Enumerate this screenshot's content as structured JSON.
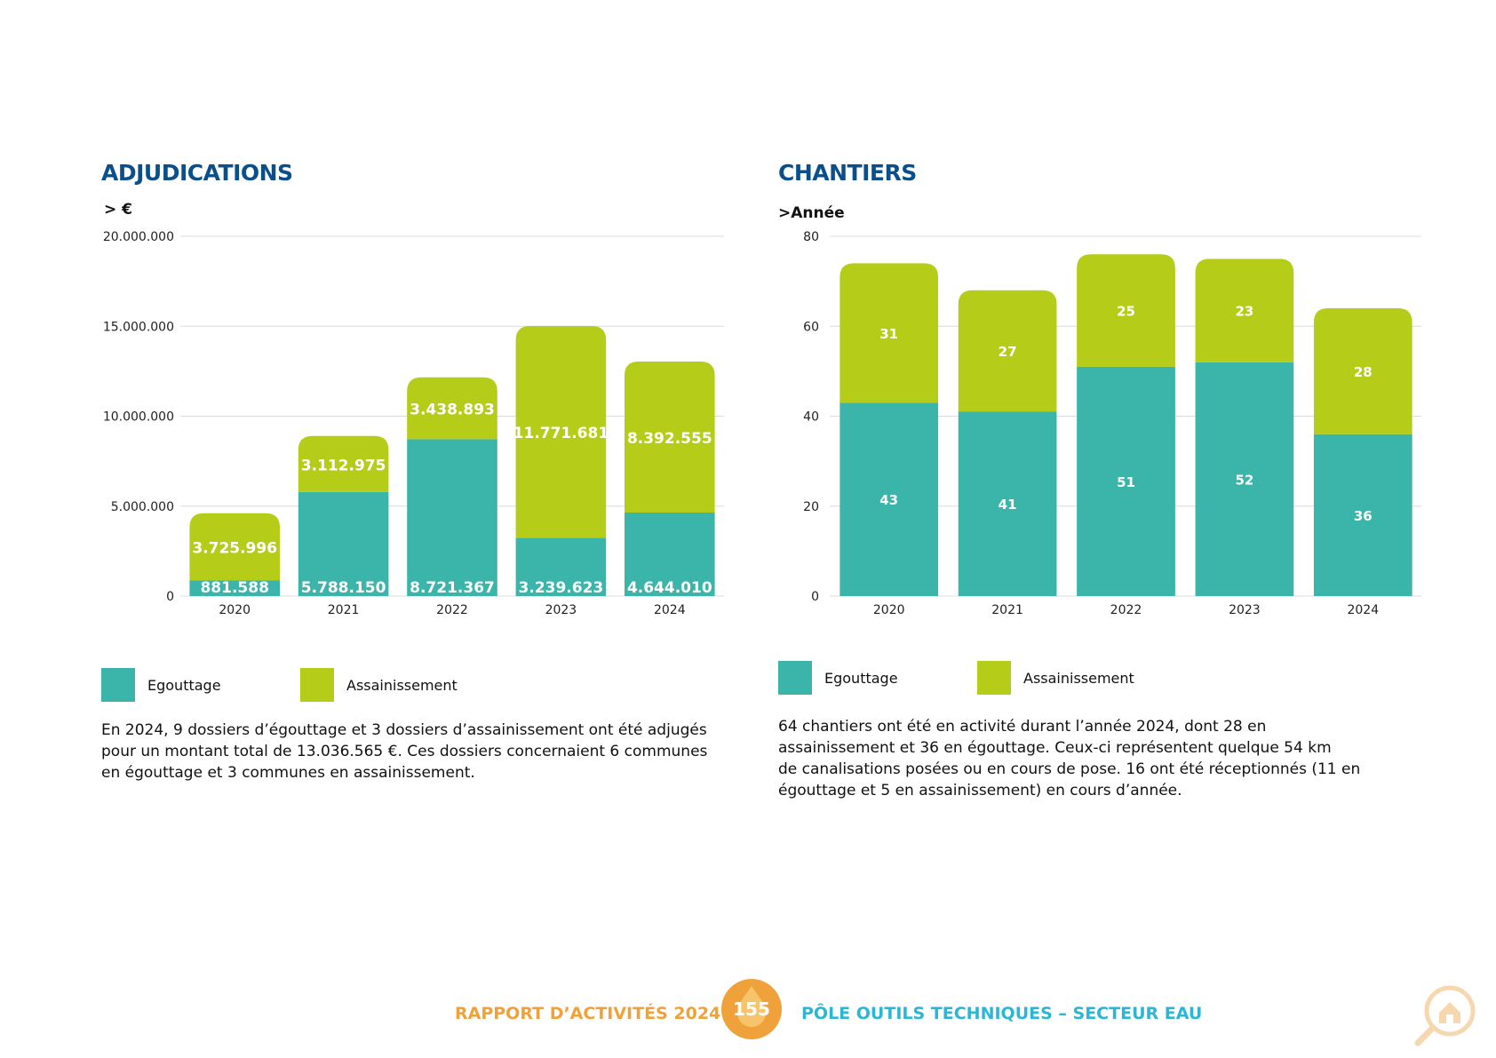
{
  "colors": {
    "egouttage": "#3bb5a9",
    "assainissement": "#b5cc18",
    "title": "#0b4f8a",
    "footer_orange": "#f0a23a",
    "footer_cyan": "#2cb6d6"
  },
  "left": {
    "title": "ADJUDICATIONS",
    "unit": "> €",
    "description": [
      "En 2024, 9 dossiers d’égouttage et 3 dossiers d’assainissement ont été adjugés",
      "pour un montant total de 13.036.565 €. Ces dossiers concernaient 6 communes",
      "en égouttage et 3 communes en assainissement."
    ],
    "legend": [
      "Egouttage",
      "Assainissement"
    ]
  },
  "right": {
    "title": "CHANTIERS",
    "unit": ">Année",
    "description": [
      "64 chantiers ont été en activité durant l’année 2024, dont 28 en",
      "assainissement et 36 en égouttage. Ceux-ci représentent quelque 54 km",
      "de canalisations posées ou en cours de pose. 16 ont été réceptionnés (11 en",
      "égouttage et 5 en assainissement) en cours d’année."
    ],
    "legend": [
      "Egouttage",
      "Assainissement"
    ]
  },
  "chart_data": [
    {
      "type": "bar",
      "stacked": true,
      "title": "ADJUDICATIONS",
      "ylabel": "> €",
      "categories": [
        "2020",
        "2021",
        "2022",
        "2023",
        "2024"
      ],
      "series": [
        {
          "name": "Egouttage",
          "values": [
            881588,
            5788150,
            8721367,
            3239623,
            4644010
          ],
          "labels": [
            "881.588",
            "5.788.150",
            "8.721.367",
            "3.239.623",
            "4.644.010"
          ]
        },
        {
          "name": "Assainissement",
          "values": [
            3725996,
            3112975,
            3438893,
            11771681,
            8392555
          ],
          "labels": [
            "3.725.996",
            "3.112.975",
            "3.438.893",
            "11.771.681",
            "8.392.555"
          ]
        }
      ],
      "ylim": [
        0,
        20000000
      ],
      "yticks": [
        0,
        5000000,
        10000000,
        15000000,
        20000000
      ],
      "ytick_labels": [
        "0",
        "5.000.000",
        "10.000.000",
        "15.000.000",
        "20.000.000"
      ],
      "grid": true,
      "legend": "bottom-left"
    },
    {
      "type": "bar",
      "stacked": true,
      "title": "CHANTIERS",
      "ylabel": ">Année",
      "categories": [
        "2020",
        "2021",
        "2022",
        "2023",
        "2024"
      ],
      "series": [
        {
          "name": "Egouttage",
          "values": [
            43,
            41,
            51,
            52,
            36
          ],
          "labels": [
            "43",
            "41",
            "51",
            "52",
            "36"
          ]
        },
        {
          "name": "Assainissement",
          "values": [
            31,
            27,
            25,
            23,
            28
          ],
          "labels": [
            "31",
            "27",
            "25",
            "23",
            "28"
          ]
        }
      ],
      "ylim": [
        0,
        80
      ],
      "yticks": [
        0,
        20,
        40,
        60,
        80
      ],
      "ytick_labels": [
        "0",
        "20",
        "40",
        "60",
        "80"
      ],
      "grid": true,
      "legend": "bottom-left"
    }
  ],
  "footer": {
    "left_text": "RAPPORT D’ACTIVITÉS 20",
    "left_year_suffix": "24",
    "page_number": "155",
    "right_text": "PÔLE OUTILS TECHNIQUES – SECTEUR EAU"
  }
}
